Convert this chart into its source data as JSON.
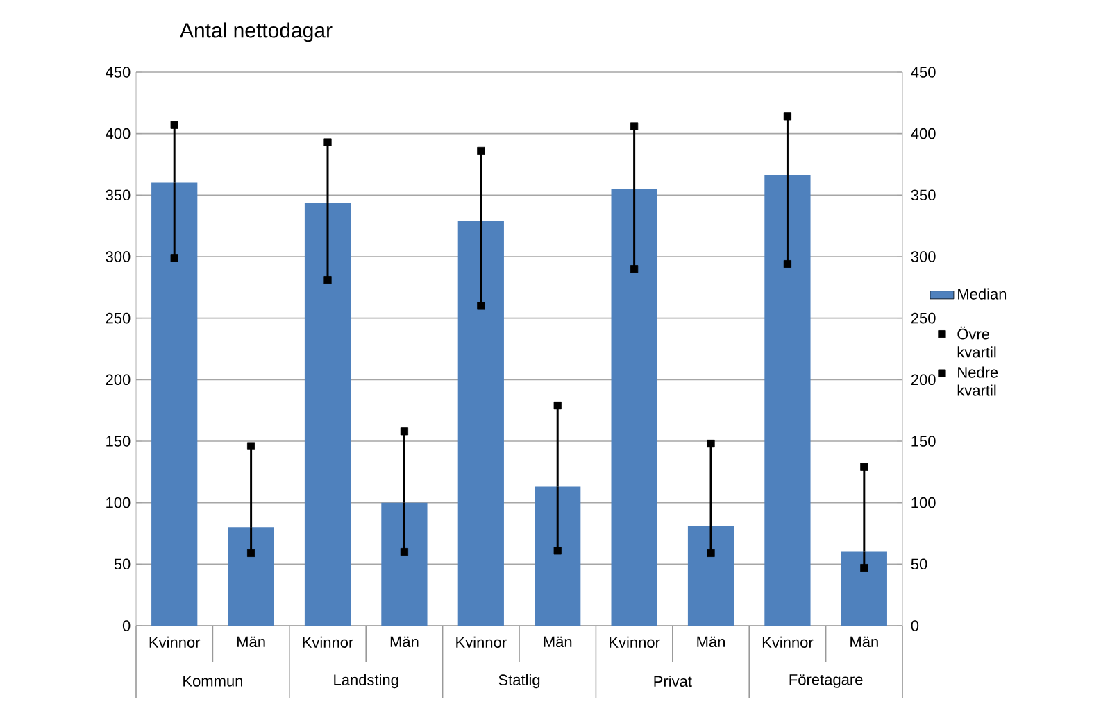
{
  "chart_data": {
    "type": "bar",
    "title": "Antal nettodagar",
    "categories": [
      "Kvinnor",
      "Män",
      "Kvinnor",
      "Män",
      "Kvinnor",
      "Män",
      "Kvinnor",
      "Män",
      "Kvinnor",
      "Män"
    ],
    "annotations": [
      "Kommun",
      "Landsting",
      "Statlig",
      "Privat",
      "Företagare"
    ],
    "series": [
      {
        "name": "Median",
        "color": "#4f81bd",
        "values": [
          360,
          80,
          344,
          100,
          329,
          113,
          355,
          81,
          366,
          60
        ],
        "errors": [
          [
            299,
            407
          ],
          [
            59,
            146
          ],
          [
            281,
            393
          ],
          [
            60,
            158
          ],
          [
            260,
            386
          ],
          [
            61,
            179
          ],
          [
            290,
            406
          ],
          [
            59,
            148
          ],
          [
            294,
            414
          ],
          [
            47,
            129
          ]
        ]
      },
      {
        "name": "Övre kvartil",
        "type": "scatter",
        "marker": "square",
        "color": "#000000",
        "values": [
          407,
          146,
          393,
          158,
          386,
          179,
          406,
          148,
          414,
          129
        ]
      },
      {
        "name": "Nedre kvartil",
        "type": "scatter",
        "marker": "square",
        "color": "#000000",
        "values": [
          299,
          59,
          281,
          60,
          260,
          61,
          290,
          59,
          294,
          47
        ]
      }
    ],
    "ylim": [
      0,
      450
    ],
    "yticks": [
      0,
      50,
      100,
      150,
      200,
      250,
      300,
      350,
      400,
      450
    ],
    "y2lim": [
      0,
      450
    ],
    "y2ticks": [
      0,
      50,
      100,
      150,
      200,
      250,
      300,
      350,
      400,
      450
    ],
    "grid": "y",
    "legend": "right"
  }
}
